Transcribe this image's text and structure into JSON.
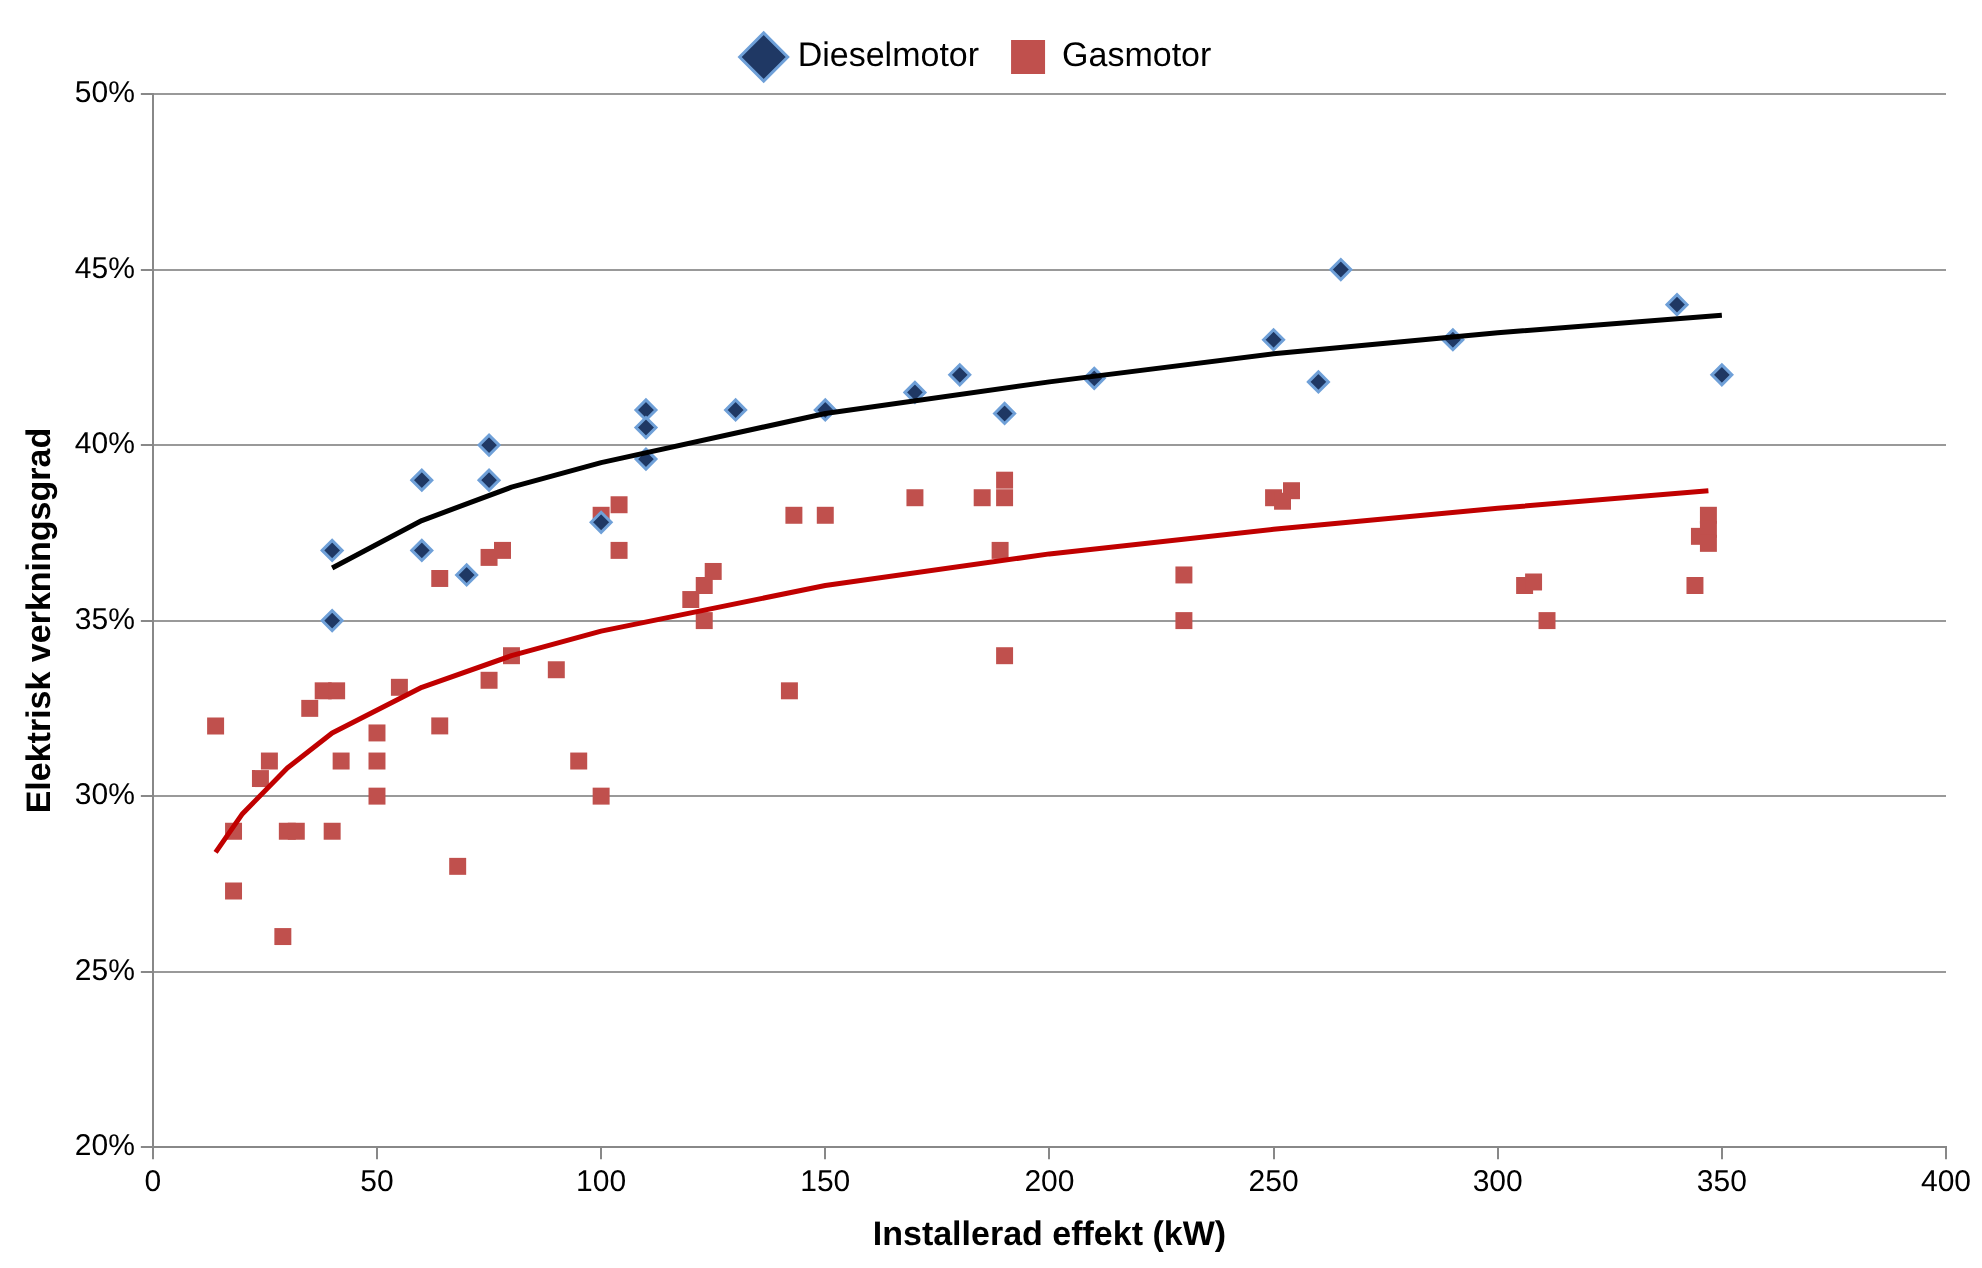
{
  "chart_data": {
    "type": "scatter",
    "xlabel": "Installerad effekt (kW)",
    "ylabel": "Elektrisk verkningsgrad",
    "xlim": [
      0,
      400
    ],
    "xticks": [
      0,
      50,
      100,
      150,
      200,
      250,
      300,
      350,
      400
    ],
    "ylim": [
      20,
      50
    ],
    "yticks": [
      {
        "value": 20,
        "label": "20%"
      },
      {
        "value": 25,
        "label": "25%"
      },
      {
        "value": 30,
        "label": "30%"
      },
      {
        "value": 35,
        "label": "35%"
      },
      {
        "value": 40,
        "label": "40%"
      },
      {
        "value": 45,
        "label": "45%"
      },
      {
        "value": 50,
        "label": "50%"
      }
    ],
    "grid": "y",
    "legend": "top",
    "series": [
      {
        "name": "Dieselmotor",
        "color": "#1f3864",
        "marker": "diamond",
        "x": [
          40,
          40,
          60,
          60,
          70,
          75,
          75,
          100,
          110,
          110,
          110,
          130,
          150,
          170,
          180,
          190,
          210,
          250,
          260,
          265,
          290,
          340,
          350
        ],
        "values": [
          37.0,
          35.0,
          39.0,
          37.0,
          36.3,
          40.0,
          39.0,
          37.8,
          41.0,
          40.5,
          39.6,
          41.0,
          41.0,
          41.5,
          42.0,
          40.9,
          41.9,
          43.0,
          41.8,
          45.0,
          43.0,
          44.0,
          42.0
        ]
      },
      {
        "name": "Gasmotor",
        "color": "#c0504d",
        "marker": "square",
        "x": [
          14,
          18,
          18,
          24,
          26,
          29,
          30,
          32,
          35,
          38,
          40,
          41,
          42,
          50,
          50,
          50,
          55,
          64,
          64,
          68,
          75,
          75,
          78,
          80,
          90,
          95,
          100,
          100,
          102,
          104,
          104,
          120,
          123,
          123,
          125,
          142,
          143,
          150,
          170,
          185,
          190,
          190,
          189,
          190,
          230,
          230,
          250,
          252,
          254,
          306,
          308,
          311,
          344,
          345,
          347,
          347,
          347
        ],
        "values": [
          32.0,
          27.3,
          29.0,
          30.5,
          31.0,
          26.0,
          29.0,
          29.0,
          32.5,
          33.0,
          29.0,
          33.0,
          31.0,
          31.8,
          31.0,
          30.0,
          33.1,
          36.2,
          32.0,
          28.0,
          33.3,
          36.8,
          37.0,
          34.0,
          33.6,
          31.0,
          30.0,
          38.0,
          null,
          38.3,
          37.0,
          35.6,
          36.0,
          35.0,
          36.4,
          33.0,
          38.0,
          38.0,
          38.5,
          38.5,
          39.0,
          38.5,
          37.0,
          34.0,
          36.3,
          35.0,
          38.5,
          38.4,
          38.7,
          36.0,
          36.1,
          35.0,
          36.0,
          37.4,
          38.0,
          37.6,
          37.2
        ]
      },
      {
        "type": "line",
        "color": "#000000",
        "marker": "none",
        "x": [
          40,
          60,
          80,
          100,
          150,
          200,
          250,
          300,
          350
        ],
        "values": [
          36.5,
          37.85,
          38.8,
          39.5,
          40.9,
          41.8,
          42.6,
          43.2,
          43.7
        ]
      },
      {
        "type": "line",
        "color": "#c00000",
        "marker": "none",
        "x": [
          14,
          20,
          30,
          40,
          60,
          80,
          100,
          150,
          200,
          250,
          300,
          347
        ],
        "values": [
          28.4,
          29.5,
          30.8,
          31.8,
          33.1,
          34.0,
          34.7,
          36.0,
          36.9,
          37.6,
          38.2,
          38.7
        ]
      }
    ]
  }
}
